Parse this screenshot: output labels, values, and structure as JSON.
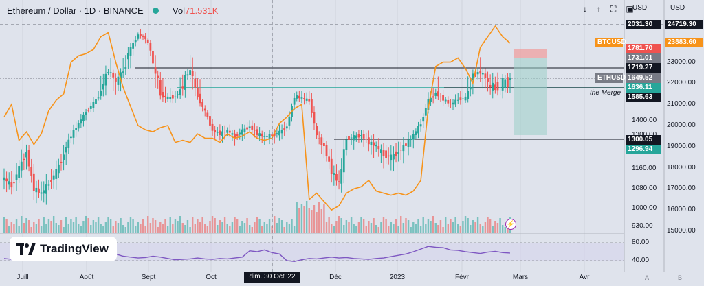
{
  "header": {
    "symbol": "Ethereum / Dollar · 1D · BINANCE",
    "volume_label": "Vol",
    "volume_value": "71.531K"
  },
  "toolbar": {
    "icons": [
      "arrow-down-icon",
      "arrow-up-icon",
      "fullscreen-icon",
      "camera-icon"
    ]
  },
  "axes": {
    "left_currency": "USD",
    "right_currency": "USD",
    "eth_ticks": [
      "1400.00",
      "1300.00",
      "1240.00",
      "1160.00",
      "1080.00",
      "1000.00",
      "930.00"
    ],
    "btc_ticks": [
      "23000.00",
      "22000.00",
      "21000.00",
      "20000.00",
      "19000.00",
      "18000.00",
      "17000.00",
      "16000.00",
      "15000.00"
    ],
    "x_ticks": [
      {
        "label": "Juill",
        "x": 33
      },
      {
        "label": "Août",
        "x": 126
      },
      {
        "label": "Sept",
        "x": 216
      },
      {
        "label": "Oct",
        "x": 307
      },
      {
        "label": "dim. 30 Oct '22",
        "x": 396
      },
      {
        "label": "Déc",
        "x": 488
      },
      {
        "label": "2023",
        "x": 578
      },
      {
        "label": "Févr",
        "x": 672
      },
      {
        "label": "Mars",
        "x": 757
      },
      {
        "label": "Avr",
        "x": 850
      }
    ],
    "crosshair_label": "dim. 30 Oct '22",
    "rsi_ticks": [
      "80.00",
      "40.00"
    ]
  },
  "price_tags": [
    {
      "text": "2031.30",
      "bg": "#131722",
      "axis": "eth"
    },
    {
      "text": "24719.30",
      "bg": "#131722",
      "axis": "btc"
    },
    {
      "text": "BTCUSD",
      "bg": "#f7931a",
      "axis": "legend"
    },
    {
      "text": "23883.60",
      "bg": "#f7931a",
      "axis": "btc"
    },
    {
      "text": "1781.70",
      "bg": "#ef5350",
      "axis": "eth"
    },
    {
      "text": "1731.01",
      "bg": "#787b86",
      "axis": "eth"
    },
    {
      "text": "1719.27",
      "bg": "#131722",
      "axis": "eth"
    },
    {
      "text": "ETHUSD",
      "bg": "#787b86",
      "axis": "legend"
    },
    {
      "text": "1649.52",
      "bg": "#787b86",
      "axis": "eth"
    },
    {
      "text": "1636.11",
      "bg": "#26a69a",
      "axis": "eth"
    },
    {
      "text": "1585.63",
      "bg": "#131722",
      "axis": "eth"
    },
    {
      "text": "1300.05",
      "bg": "#131722",
      "axis": "eth"
    },
    {
      "text": "1296.94",
      "bg": "#26a69a",
      "axis": "eth"
    }
  ],
  "annotation": "the Merge",
  "logo": "TradingView",
  "scale_buttons": [
    "A",
    "B"
  ],
  "colors": {
    "up": "#26a69a",
    "down": "#ef5350",
    "btc": "#f7931a",
    "rsi": "#7e57c2",
    "bg": "#dfe3ec"
  },
  "chart_data": {
    "type": "candlestick",
    "x_range": [
      "2022-06-20",
      "2023-04-15"
    ],
    "eth_close": [
      1120,
      1090,
      1160,
      1220,
      1080,
      1060,
      1100,
      1150,
      1210,
      1300,
      1380,
      1470,
      1540,
      1620,
      1700,
      1640,
      1700,
      1790,
      1930,
      1890,
      1720,
      1600,
      1580,
      1590,
      1640,
      1700,
      1590,
      1470,
      1330,
      1310,
      1330,
      1290,
      1330,
      1360,
      1310,
      1290,
      1300,
      1320,
      1360,
      1590,
      1580,
      1560,
      1290,
      1240,
      1150,
      1100,
      1280,
      1290,
      1300,
      1260,
      1240,
      1210,
      1200,
      1220,
      1250,
      1300,
      1380,
      1560,
      1610,
      1570,
      1530,
      1570,
      1580,
      1680,
      1690,
      1640,
      1630,
      1640,
      1650
    ],
    "btc_close": [
      20400,
      21000,
      19300,
      19700,
      19100,
      19600,
      20700,
      21200,
      21500,
      23000,
      23300,
      23400,
      23600,
      24200,
      24400,
      23000,
      21800,
      20900,
      20000,
      19800,
      19700,
      19900,
      20000,
      19200,
      19300,
      19200,
      19600,
      19400,
      19400,
      19200,
      19600,
      19400,
      19500,
      19700,
      19400,
      19300,
      19400,
      20100,
      20400,
      20800,
      21000,
      16500,
      16800,
      16400,
      16000,
      16200,
      16800,
      17000,
      17100,
      17400,
      16900,
      16800,
      16700,
      16800,
      16700,
      16900,
      17400,
      20800,
      22800,
      23000,
      23000,
      23200,
      22700,
      22000,
      23700,
      24200,
      24700,
      24200,
      23900
    ],
    "rsi": [
      45,
      43,
      47,
      50,
      44,
      43,
      46,
      49,
      52,
      56,
      58,
      60,
      59,
      62,
      61,
      55,
      50,
      48,
      46,
      47,
      50,
      48,
      45,
      42,
      43,
      44,
      46,
      44,
      43,
      45,
      44,
      46,
      48,
      62,
      60,
      64,
      58,
      55,
      40,
      38,
      42,
      45,
      44,
      46,
      48,
      46,
      47,
      45,
      44,
      43,
      45,
      46,
      49,
      52,
      55,
      60,
      66,
      72,
      70,
      69,
      64,
      63,
      60,
      58,
      56,
      59,
      61,
      58,
      57
    ],
    "horizontal_levels": [
      1719.27,
      1649.52,
      1636.11,
      1300.05
    ],
    "position_box": {
      "entry": 1731.01,
      "stop": 1781.7,
      "target": 1300.05
    }
  }
}
